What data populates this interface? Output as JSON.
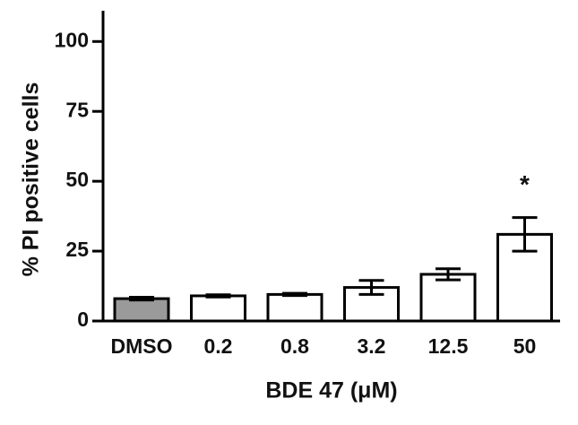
{
  "chart_data": {
    "type": "bar",
    "y_label": "% PI positive cells",
    "x_label": "BDE 47 (μM)",
    "categories": [
      "DMSO",
      "0.2",
      "0.8",
      "3.2",
      "12.5",
      "50"
    ],
    "values": [
      8,
      9,
      9.5,
      12,
      16.7,
      31
    ],
    "errors": [
      0.5,
      0.4,
      0.4,
      2.5,
      2,
      6
    ],
    "colors": [
      "#9a9a9a",
      "#ffffff",
      "#ffffff",
      "#ffffff",
      "#ffffff",
      "#ffffff"
    ],
    "ylim": [
      0,
      111
    ],
    "yticks": [
      0,
      25,
      50,
      75,
      100
    ],
    "annotations": [
      {
        "text": "*",
        "category": "50"
      }
    ]
  }
}
